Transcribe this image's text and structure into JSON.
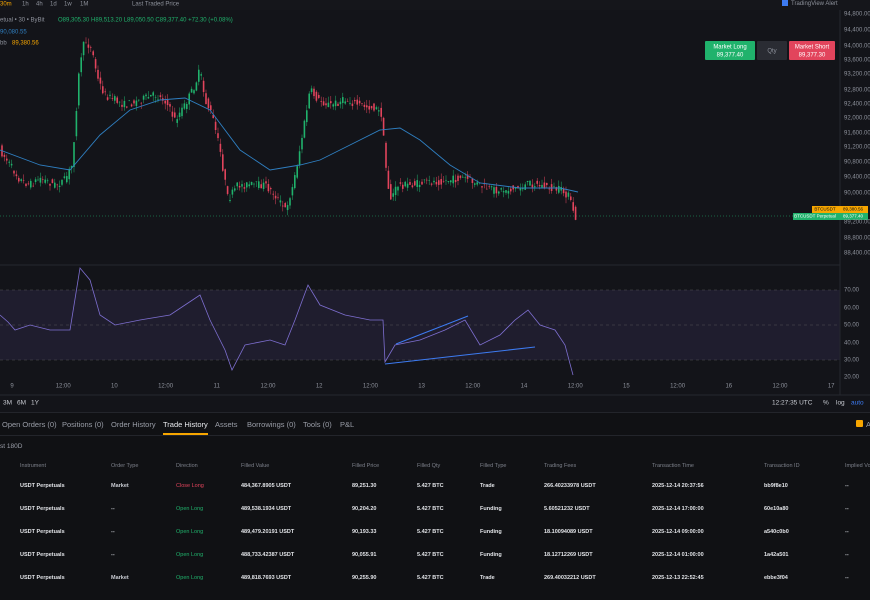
{
  "toolbar": {
    "intervals": [
      "30m",
      "1h",
      "4h",
      "1d",
      "1w",
      "1M"
    ],
    "price_source": "Last Traded Price",
    "alert": "TradingView Alert"
  },
  "legend": {
    "symbol": "etual • 30 • ByBit",
    "ohlc": "O89,305.30 H89,513.20 L89,050.50 C89,377.40 +72.30 (+0.08%)",
    "ma": "90,080.55",
    "bb_label": "bb",
    "bb": "89,380.56"
  },
  "order_widget": {
    "long_label": "Market Long",
    "long_price": "89,377.40",
    "qty": "Qty",
    "short_label": "Market Short",
    "short_price": "89,377.30"
  },
  "price_axis": [
    "94,800.00",
    "94,400.00",
    "94,000.00",
    "93,600.00",
    "93,200.00",
    "92,800.00",
    "92,400.00",
    "92,000.00",
    "91,600.00",
    "91,200.00",
    "90,800.00",
    "90,400.00",
    "90,000.00",
    "89,200.00",
    "88,800.00",
    "88,400.00"
  ],
  "price_tags": [
    {
      "label": "BTCUSDT",
      "value": "89,380.56"
    },
    {
      "label": "BTCUSDT Perpetual",
      "value": "89,377.40"
    }
  ],
  "rsi_axis": [
    "70.00",
    "60.00",
    "50.00",
    "40.00",
    "30.00",
    "20.00"
  ],
  "time_axis": [
    "9",
    "12:00",
    "10",
    "12:00",
    "11",
    "12:00",
    "12",
    "12:00",
    "13",
    "12:00",
    "14",
    "12:00",
    "15",
    "12:00",
    "16",
    "12:00",
    "17"
  ],
  "range_buttons": [
    "3M",
    "6M",
    "1Y"
  ],
  "clock": "12:27:35 UTC",
  "scale_options": [
    "%",
    "log",
    "auto"
  ],
  "tabs": [
    "Open Orders (0)",
    "Positions (0)",
    "Order History",
    "Trade History",
    "Assets",
    "Borrowings (0)",
    "Tools (0)",
    "P&L"
  ],
  "active_tab": 3,
  "checkbox_label": "A",
  "filter": "st 180D",
  "table": {
    "headers": [
      "Instrument",
      "Order Type",
      "Direction",
      "Filled Value",
      "Filled Price",
      "Filled Qty",
      "Filled Type",
      "Trading Fees",
      "Transaction Time",
      "Transaction ID",
      "Implied Vo"
    ],
    "rows": [
      {
        "color": "#e2445c",
        "cells": [
          "USDT Perpetuals",
          "Market",
          "Close Long",
          "484,367.8905 USDT",
          "89,251.30",
          "5.427 BTC",
          "Trade",
          "266.40233978 USDT",
          "2025-12-14 20:37:56",
          "bb9f8e10",
          "--"
        ]
      },
      {
        "color": "#20b26c",
        "cells": [
          "USDT Perpetuals",
          "--",
          "Open Long",
          "489,538.1934 USDT",
          "90,204.20",
          "5.427 BTC",
          "Funding",
          "5.60521232 USDT",
          "2025-12-14 17:00:00",
          "60e10a80",
          "--"
        ]
      },
      {
        "color": "#20b26c",
        "cells": [
          "USDT Perpetuals",
          "--",
          "Open Long",
          "489,479.20191 USDT",
          "90,193.33",
          "5.427 BTC",
          "Funding",
          "18.10094089 USDT",
          "2025-12-14 09:00:00",
          "a540c0b0",
          "--"
        ]
      },
      {
        "color": "#20b26c",
        "cells": [
          "USDT Perpetuals",
          "--",
          "Open Long",
          "488,733.42387 USDT",
          "90,055.91",
          "5.427 BTC",
          "Funding",
          "18.12712269 USDT",
          "2025-12-14 01:00:00",
          "1a42a501",
          "--"
        ]
      },
      {
        "color": "#20b26c",
        "cells": [
          "USDT Perpetuals",
          "Market",
          "Open Long",
          "489,818.7693 USDT",
          "90,255.90",
          "5.427 BTC",
          "Trade",
          "269.40032212 USDT",
          "2025-12-13 22:52:45",
          "ebbe3f04",
          "--"
        ]
      }
    ]
  }
}
